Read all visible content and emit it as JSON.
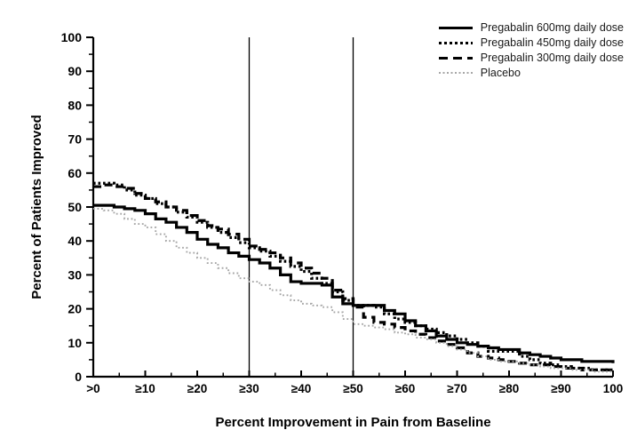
{
  "chart_data": {
    "type": "line",
    "subtype": "step-survival",
    "title": "",
    "xlabel": "Percent Improvement in Pain from Baseline",
    "ylabel": "Percent of Patients Improved",
    "xlim": [
      0,
      100
    ],
    "ylim": [
      0,
      100
    ],
    "x_tick_values": [
      0,
      10,
      20,
      30,
      40,
      50,
      60,
      70,
      80,
      90,
      100
    ],
    "x_tick_labels": [
      ">0",
      "≥10",
      "≥20",
      "≥30",
      "≥40",
      "≥50",
      "≥60",
      "≥70",
      "≥80",
      "≥90",
      "100"
    ],
    "y_tick_values": [
      0,
      10,
      20,
      30,
      40,
      50,
      60,
      70,
      80,
      90,
      100
    ],
    "y_tick_labels": [
      "0",
      "10",
      "20",
      "30",
      "40",
      "50",
      "60",
      "70",
      "80",
      "90",
      "100"
    ],
    "minor_tick_interval": 5,
    "grid": false,
    "legend_position": "top-right",
    "reference_lines_x": [
      30,
      50
    ],
    "axis_color": "#000000",
    "x": [
      0,
      2,
      4,
      6,
      8,
      10,
      12,
      14,
      16,
      18,
      20,
      22,
      24,
      26,
      28,
      30,
      32,
      34,
      36,
      38,
      40,
      42,
      44,
      46,
      48,
      50,
      52,
      54,
      56,
      58,
      60,
      62,
      64,
      66,
      68,
      70,
      72,
      74,
      76,
      78,
      80,
      82,
      84,
      86,
      88,
      90,
      92,
      94,
      96,
      98,
      100
    ],
    "series": [
      {
        "name": "Pregabalin 600mg daily dose",
        "style": "solid",
        "color": "#000000",
        "values": [
          50.5,
          50.5,
          50,
          49.5,
          49,
          48,
          46.5,
          45.5,
          44,
          42.5,
          40.5,
          39,
          38,
          36.5,
          35.5,
          34.5,
          33.5,
          32,
          30,
          28,
          27.5,
          27.5,
          27,
          23.5,
          21.5,
          21,
          21,
          21,
          19.5,
          18.5,
          16.5,
          15,
          13.5,
          12,
          11,
          10,
          9.5,
          9,
          8.5,
          8,
          8,
          7,
          6.5,
          6,
          5.5,
          5,
          5,
          4.5,
          4.5,
          4.5,
          4
        ]
      },
      {
        "name": "Pregabalin 450mg daily dose",
        "style": "dense-dotted",
        "color": "#000000",
        "values": [
          57,
          57,
          56.5,
          55,
          53.5,
          52.5,
          51,
          50,
          48.5,
          47,
          45.5,
          44,
          42.5,
          41,
          39.5,
          38,
          37,
          35.5,
          34,
          32.5,
          31,
          29,
          27.5,
          25,
          22.5,
          21,
          21,
          20.5,
          18.5,
          17,
          16,
          15,
          14,
          13,
          12,
          11,
          10,
          9,
          7.5,
          7.5,
          7.5,
          6,
          5,
          4,
          3.5,
          3,
          2.5,
          2.5,
          2,
          2,
          2
        ]
      },
      {
        "name": "Pregabalin 300mg daily dose",
        "style": "dashed",
        "color": "#000000",
        "values": [
          56,
          56.5,
          56,
          55.5,
          54,
          52.5,
          51.5,
          50,
          49,
          47.5,
          46,
          44.5,
          43.5,
          42,
          40.5,
          38.5,
          37.5,
          36.5,
          35,
          33.5,
          32,
          30.5,
          29,
          25.5,
          23,
          20.5,
          17.5,
          16,
          15.5,
          14.5,
          13.5,
          12.5,
          11.5,
          10.5,
          9.5,
          8.5,
          7,
          6,
          5.5,
          5,
          4.5,
          4,
          3.5,
          3.5,
          3,
          2.5,
          2.5,
          2,
          2,
          2,
          1.5
        ]
      },
      {
        "name": "Placebo",
        "style": "fine-dotted",
        "color": "#a6a6a6",
        "values": [
          49.5,
          49,
          48,
          46.5,
          45,
          44,
          42,
          40,
          38,
          36.5,
          35,
          33.5,
          32,
          30.5,
          29,
          28,
          27,
          25.5,
          24,
          22.5,
          21.5,
          21,
          20.5,
          19,
          17,
          15.5,
          15,
          14.5,
          14,
          13,
          12.5,
          11.5,
          11,
          10,
          9,
          8,
          7,
          6,
          5,
          4.5,
          4.5,
          4,
          3.5,
          3,
          2.5,
          2.5,
          2,
          2,
          1.5,
          1.5,
          1.5
        ]
      }
    ]
  }
}
